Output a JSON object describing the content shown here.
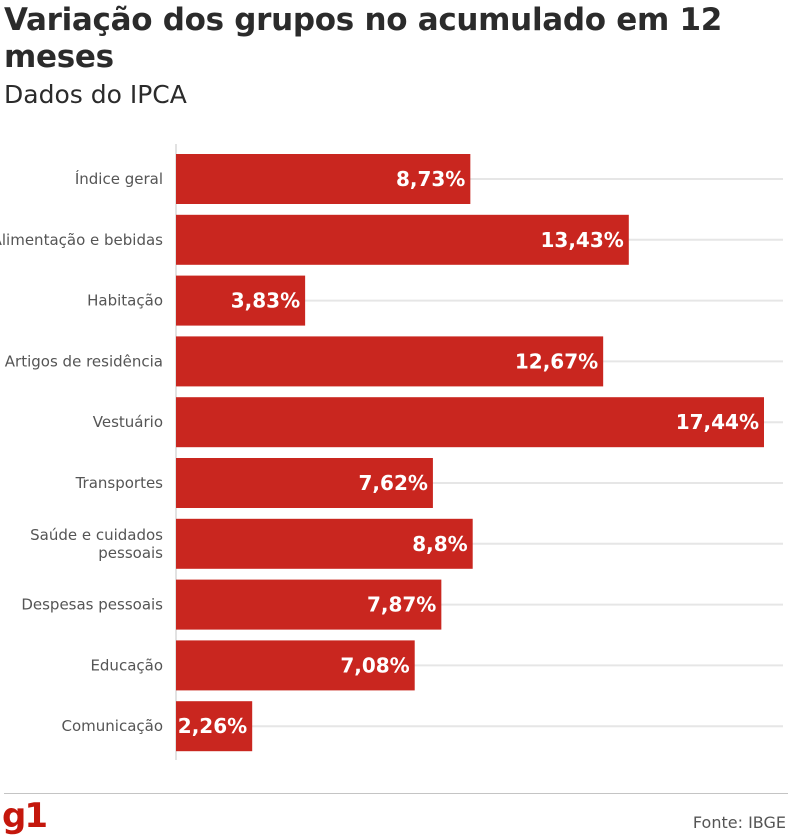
{
  "title": "Variação dos grupos no acumulado em 12 meses",
  "subtitle": "Dados do IPCA",
  "source": "Fonte: IBGE",
  "logo_text": "g1",
  "colors": {
    "bar": "#c9261f",
    "grid": "#e6e6e6",
    "axis": "#c4c4c4",
    "label": "#555555"
  },
  "chart_data": {
    "type": "bar",
    "orientation": "horizontal",
    "categories": [
      [
        "Índice geral"
      ],
      [
        "Alimentação e bebidas"
      ],
      [
        "Habitação"
      ],
      [
        "Artigos de residência"
      ],
      [
        "Vestuário"
      ],
      [
        "Transportes"
      ],
      [
        "Saúde e cuidados",
        "pessoais"
      ],
      [
        "Despesas pessoais"
      ],
      [
        "Educação"
      ],
      [
        "Comunicação"
      ]
    ],
    "values": [
      8.73,
      13.43,
      3.83,
      12.67,
      17.44,
      7.62,
      8.8,
      7.87,
      7.08,
      2.26
    ],
    "value_labels": [
      "8,73%",
      "13,43%",
      "3,83%",
      "12,67%",
      "17,44%",
      "7,62%",
      "8,8%",
      "7,87%",
      "7,08%",
      "2,26%"
    ],
    "xlim": [
      0,
      17.44
    ],
    "grid": true
  }
}
